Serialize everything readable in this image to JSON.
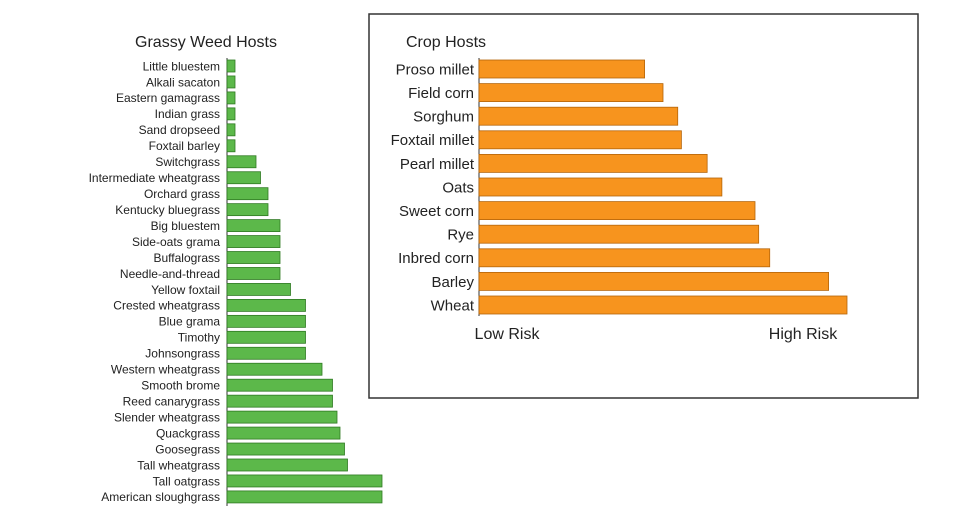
{
  "chart_data": [
    {
      "type": "bar",
      "orientation": "horizontal",
      "title": "Grassy Weed Hosts",
      "bar_color": "#5cb84a",
      "bar_border": "#2f7a22",
      "xlim": [
        0,
        100
      ],
      "categories": [
        "Little bluestem",
        "Alkali sacaton",
        "Eastern gamagrass",
        "Indian grass",
        "Sand dropseed",
        "Foxtail barley",
        "Switchgrass",
        "Intermediate wheatgrass",
        "Orchard grass",
        "Kentucky bluegrass",
        "Big bluestem",
        "Side-oats grama",
        "Buffalograss",
        "Needle-and-thread",
        "Yellow foxtail",
        "Crested wheatgrass",
        "Blue grama",
        "Timothy",
        "Johnsongrass",
        "Western wheatgrass",
        "Smooth brome",
        "Reed canarygrass",
        "Slender wheatgrass",
        "Quackgrass",
        "Goosegrass",
        "Tall wheatgrass",
        "Tall oatgrass",
        "American sloughgrass"
      ],
      "values": [
        2,
        2,
        2,
        2,
        2,
        2,
        16,
        19,
        24,
        24,
        32,
        32,
        32,
        32,
        39,
        49,
        49,
        49,
        49,
        60,
        67,
        67,
        70,
        72,
        75,
        77,
        100,
        100
      ]
    },
    {
      "type": "bar",
      "orientation": "horizontal",
      "title": "Crop Hosts",
      "bar_color": "#f7941e",
      "bar_border": "#b5650a",
      "xlim": [
        0,
        100
      ],
      "axis_labels": {
        "low": "Low Risk",
        "high": "High Risk"
      },
      "categories": [
        "Proso millet",
        "Field corn",
        "Sorghum",
        "Foxtail millet",
        "Pearl millet",
        "Oats",
        "Sweet corn",
        "Rye",
        "Inbred corn",
        "Barley",
        "Wheat"
      ],
      "values": [
        45,
        50,
        54,
        55,
        62,
        66,
        75,
        76,
        79,
        95,
        100
      ]
    }
  ]
}
